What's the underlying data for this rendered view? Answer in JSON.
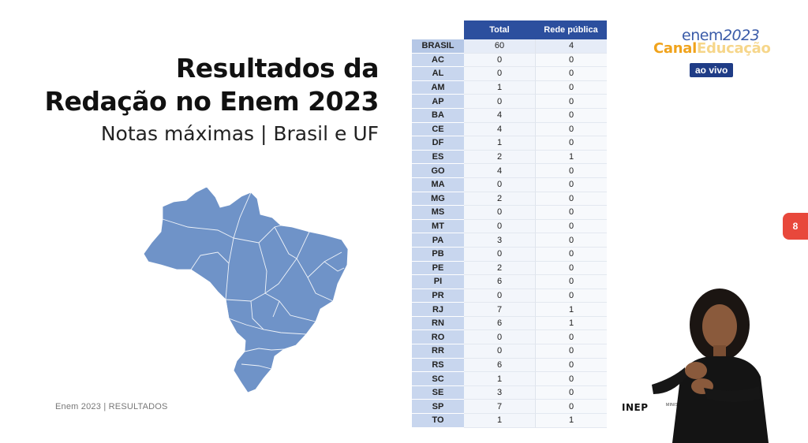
{
  "title": {
    "line1": "Resultados da",
    "line2": "Redação no Enem 2023",
    "subtitle": "Notas máximas | Brasil e UF"
  },
  "footer": "Enem 2023 | RESULTADOS",
  "logo": {
    "enem": "enem",
    "year": "2023",
    "canal": "Canal",
    "educacao": "Educação",
    "live": "ao vivo"
  },
  "page_badge": "8",
  "inep": "INEP",
  "ministerio": "MINISTÉRIO DA EDUCAÇÃO",
  "table": {
    "headers": [
      "Total",
      "Rede pública"
    ],
    "rows": [
      {
        "uf": "BRASIL",
        "total": "60",
        "publica": "4"
      },
      {
        "uf": "AC",
        "total": "0",
        "publica": "0"
      },
      {
        "uf": "AL",
        "total": "0",
        "publica": "0"
      },
      {
        "uf": "AM",
        "total": "1",
        "publica": "0"
      },
      {
        "uf": "AP",
        "total": "0",
        "publica": "0"
      },
      {
        "uf": "BA",
        "total": "4",
        "publica": "0"
      },
      {
        "uf": "CE",
        "total": "4",
        "publica": "0"
      },
      {
        "uf": "DF",
        "total": "1",
        "publica": "0"
      },
      {
        "uf": "ES",
        "total": "2",
        "publica": "1"
      },
      {
        "uf": "GO",
        "total": "4",
        "publica": "0"
      },
      {
        "uf": "MA",
        "total": "0",
        "publica": "0"
      },
      {
        "uf": "MG",
        "total": "2",
        "publica": "0"
      },
      {
        "uf": "MS",
        "total": "0",
        "publica": "0"
      },
      {
        "uf": "MT",
        "total": "0",
        "publica": "0"
      },
      {
        "uf": "PA",
        "total": "3",
        "publica": "0"
      },
      {
        "uf": "PB",
        "total": "0",
        "publica": "0"
      },
      {
        "uf": "PE",
        "total": "2",
        "publica": "0"
      },
      {
        "uf": "PI",
        "total": "6",
        "publica": "0"
      },
      {
        "uf": "PR",
        "total": "0",
        "publica": "0"
      },
      {
        "uf": "RJ",
        "total": "7",
        "publica": "1"
      },
      {
        "uf": "RN",
        "total": "6",
        "publica": "1"
      },
      {
        "uf": "RO",
        "total": "0",
        "publica": "0"
      },
      {
        "uf": "RR",
        "total": "0",
        "publica": "0"
      },
      {
        "uf": "RS",
        "total": "6",
        "publica": "0"
      },
      {
        "uf": "SC",
        "total": "1",
        "publica": "0"
      },
      {
        "uf": "SE",
        "total": "3",
        "publica": "0"
      },
      {
        "uf": "SP",
        "total": "7",
        "publica": "0"
      },
      {
        "uf": "TO",
        "total": "1",
        "publica": "1"
      }
    ]
  },
  "colors": {
    "header_blue": "#2c4f9e",
    "map_blue": "#6f93c8",
    "accent_orange": "#f0a31c",
    "badge_red": "#e8483b"
  }
}
